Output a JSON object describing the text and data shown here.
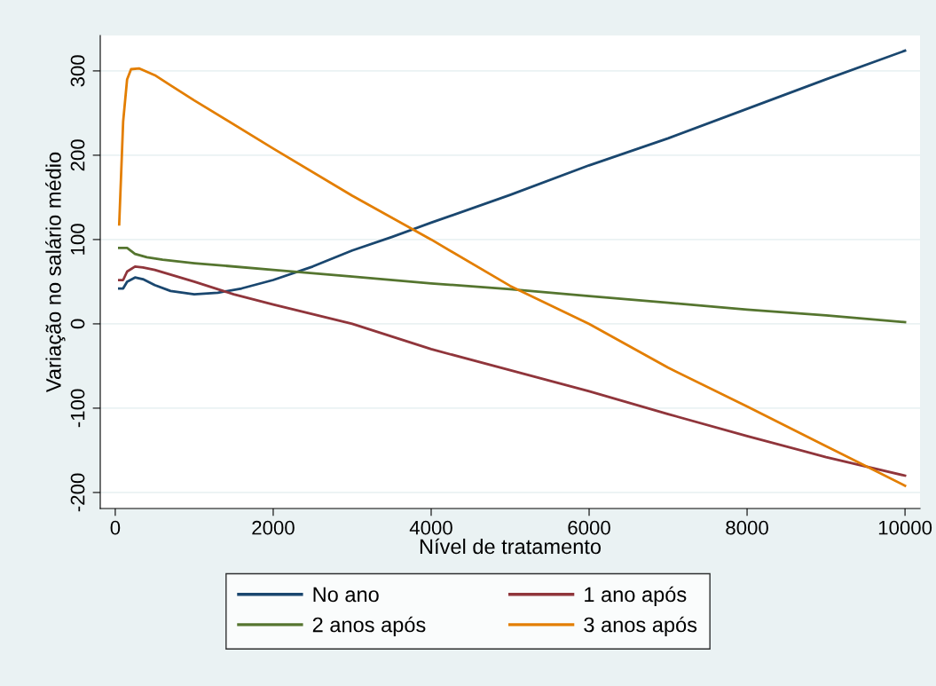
{
  "chart_data": {
    "type": "line",
    "xlabel": "Nível de tratamento",
    "ylabel": "Variação no salário médio",
    "xlim": [
      -190,
      10190
    ],
    "ylim": [
      -219,
      342
    ],
    "xticks": [
      0,
      2000,
      4000,
      6000,
      8000,
      10000
    ],
    "yticks": [
      -200,
      -100,
      0,
      100,
      200,
      300
    ],
    "grid": "y",
    "legend": "bottom",
    "line_style": "solid",
    "marker": "none",
    "series": [
      {
        "name": "No ano",
        "color": "#1a476f",
        "x": [
          50,
          100,
          150,
          250,
          350,
          500,
          700,
          1000,
          1300,
          1600,
          2000,
          2500,
          3000,
          3500,
          4000,
          5000,
          6000,
          7000,
          8000,
          9000,
          10000
        ],
        "values": [
          42,
          42,
          50,
          55,
          53,
          46,
          39,
          35,
          37,
          42,
          52,
          68,
          87,
          103,
          120,
          153,
          188,
          220,
          255,
          290,
          324
        ]
      },
      {
        "name": "1 ano após",
        "color": "#90353b",
        "x": [
          50,
          100,
          150,
          250,
          350,
          500,
          1000,
          1500,
          2000,
          3000,
          4000,
          5000,
          6000,
          7000,
          8000,
          9000,
          10000
        ],
        "values": [
          52,
          52,
          62,
          68,
          67,
          64,
          50,
          35,
          23,
          0,
          -30,
          -55,
          -80,
          -107,
          -133,
          -158,
          -180
        ]
      },
      {
        "name": "2 anos após",
        "color": "#55752f",
        "x": [
          50,
          150,
          250,
          400,
          600,
          1000,
          2000,
          3000,
          4000,
          5000,
          6000,
          7000,
          8000,
          9000,
          10000
        ],
        "values": [
          90,
          90,
          83,
          79,
          76,
          72,
          64,
          56,
          48,
          41,
          33,
          25,
          17,
          10,
          2
        ]
      },
      {
        "name": "3 anos após",
        "color": "#e37e00",
        "x": [
          50,
          100,
          150,
          200,
          300,
          500,
          700,
          1000,
          2000,
          3000,
          4000,
          5000,
          6000,
          7000,
          8000,
          9000,
          10000
        ],
        "values": [
          118,
          240,
          290,
          302,
          303,
          295,
          283,
          265,
          208,
          152,
          100,
          45,
          0,
          -52,
          -98,
          -145,
          -192
        ]
      }
    ]
  }
}
